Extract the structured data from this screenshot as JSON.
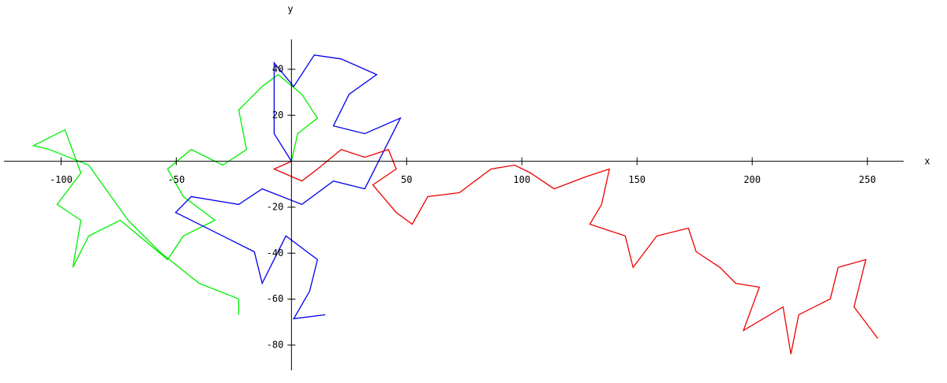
{
  "chart_data": {
    "type": "line",
    "x_label": "x",
    "y_label": "y",
    "xlim": [
      -124.8,
      264
    ],
    "ylim": [
      -91,
      53
    ],
    "xticks": [
      -100,
      -50,
      50,
      100,
      150,
      200,
      250
    ],
    "yticks": [
      -80,
      -60,
      -40,
      -20,
      20,
      40
    ],
    "series": [
      {
        "color": "#00ee00",
        "x": [
          0,
          2.7,
          11.3,
          4.5,
          -5.8,
          -12.7,
          -22.9,
          -19.5,
          -29.8,
          -43.5,
          -53.8,
          -46.9,
          -33.2,
          -46.9,
          -53.8,
          -74.3,
          -88,
          -94.9,
          -91.4,
          -101.7,
          -91.4,
          -98.3,
          -112,
          -105.1,
          -88,
          -70.9,
          -57.2,
          -40.1,
          -22.9,
          -22.9
        ],
        "values": [
          0,
          12,
          18.8,
          29.1,
          37.7,
          32.5,
          22.3,
          5.1,
          -1.7,
          5.1,
          -3.4,
          -15.4,
          -25.7,
          -32.5,
          -42.8,
          -25.7,
          -32.5,
          -46.2,
          -25.7,
          -18.8,
          -5.1,
          13.7,
          6.8,
          5.1,
          -1.7,
          -25.7,
          -39.4,
          -53.1,
          -59.9,
          -66.8
        ]
      },
      {
        "color": "#0000ee",
        "x": [
          0,
          -7.5,
          -7.5,
          1,
          9.9,
          21.6,
          37,
          25,
          18.2,
          31.8,
          47.3,
          38.7,
          31.8,
          18.2,
          4.5,
          -12.7,
          -22.9,
          -43.5,
          -50.3,
          -29.8,
          -16.1,
          -12.7,
          -2.4,
          11.3,
          7.9,
          1,
          14.7
        ],
        "values": [
          0,
          12,
          42.8,
          32.5,
          46.2,
          44.5,
          37.7,
          29.1,
          15.4,
          12,
          18.8,
          1.7,
          -12,
          -8.6,
          -18.8,
          -12,
          -18.8,
          -15.4,
          -22.3,
          -32.5,
          -39.4,
          -53.1,
          -32.5,
          -42.8,
          -56.5,
          -68.5,
          -66.8
        ]
      },
      {
        "color": "#ee0000",
        "x": [
          0,
          -7.5,
          4.5,
          11.3,
          21.6,
          31.8,
          42.1,
          45.5,
          35.3,
          45.5,
          52.4,
          59.2,
          72.9,
          86.6,
          96.9,
          103.8,
          114,
          127.7,
          138,
          134.6,
          129.5,
          144.9,
          148.3,
          158.6,
          172.3,
          175.7,
          186,
          192.8,
          203.1,
          196.2,
          213.4,
          216.8,
          220.2,
          233.9,
          237.3,
          249.3,
          244.2,
          254.5
        ],
        "values": [
          0,
          -3.4,
          -8.6,
          -3.4,
          5.1,
          1.7,
          5.1,
          -3.4,
          -10.3,
          -22.3,
          -27.4,
          -15.4,
          -13.7,
          -3.4,
          -1.7,
          -5.1,
          -12,
          -6.8,
          -3.4,
          -18.8,
          -27.4,
          -32.5,
          -46.2,
          -32.5,
          -29.1,
          -39.4,
          -46.2,
          -53.1,
          -54.8,
          -73.6,
          -63.4,
          -83.9,
          -66.8,
          -59.9,
          -46.2,
          -42.8,
          -63.4,
          -77.1
        ]
      }
    ]
  }
}
